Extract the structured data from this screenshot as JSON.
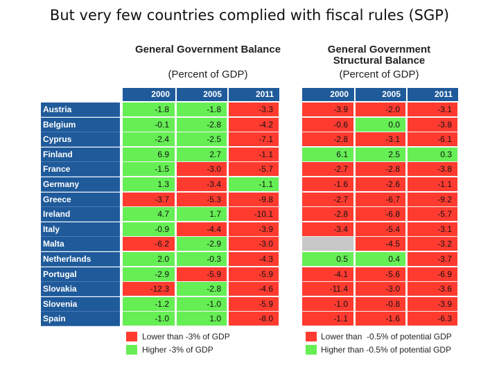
{
  "slide_title": "But very few countries complied with fiscal rules (SGP)",
  "colors": {
    "header": "#1f5a9a",
    "red": "#ff3b30",
    "green": "#66ee55",
    "gray": "#c8c8c8"
  },
  "chart_data": [
    {
      "type": "table",
      "title": "General Government Balance",
      "subtitle": "(Percent of GDP)",
      "columns": [
        "2000",
        "2005",
        "2011"
      ],
      "rows": [
        "Austria",
        "Belgium",
        "Cyprus",
        "Finland",
        "France",
        "Germany",
        "Greece",
        "Ireland",
        "Italy",
        "Malta",
        "Netherlands",
        "Portugal",
        "Slovakia",
        "Slovenia",
        "Spain"
      ],
      "values": [
        [
          -1.8,
          -1.8,
          -3.3
        ],
        [
          -0.1,
          -2.8,
          -4.2
        ],
        [
          -2.4,
          -2.5,
          -7.1
        ],
        [
          6.9,
          2.7,
          -1.1
        ],
        [
          -1.5,
          -3.0,
          -5.7
        ],
        [
          1.3,
          -3.4,
          -1.1
        ],
        [
          -3.7,
          -5.3,
          -9.8
        ],
        [
          4.7,
          1.7,
          -10.1
        ],
        [
          -0.9,
          -4.4,
          -3.9
        ],
        [
          -6.2,
          -2.9,
          -3.0
        ],
        [
          2.0,
          -0.3,
          -4.3
        ],
        [
          -2.9,
          -5.9,
          -5.9
        ],
        [
          -12.3,
          -2.8,
          -4.6
        ],
        [
          -1.2,
          -1.0,
          -5.9
        ],
        [
          -1.0,
          1.0,
          -8.0
        ]
      ],
      "cell_labels": [
        [
          "-1.8",
          "-1.8",
          "-3.3"
        ],
        [
          "-0.1",
          "-2.8",
          "-4.2"
        ],
        [
          "-2.4",
          "-2.5",
          "-7.1"
        ],
        [
          "6.9",
          "2.7",
          "-1.1"
        ],
        [
          "-1.5",
          "-3.0",
          "-5.7"
        ],
        [
          "1.3",
          "-3.4",
          "-1.1"
        ],
        [
          "-3.7",
          "-5.3",
          "-9.8"
        ],
        [
          "4.7",
          "1.7",
          "-10.1"
        ],
        [
          "-0.9",
          "-4.4",
          "-3.9"
        ],
        [
          "-6.2",
          "-2.9",
          "-3.0"
        ],
        [
          "2.0",
          "-0.3",
          "-4.3"
        ],
        [
          "-2.9",
          "-5.9",
          "-5.9"
        ],
        [
          "-12.3",
          "-2.8",
          "-4.6"
        ],
        [
          "-1.2",
          "-1.0",
          "-5.9"
        ],
        [
          "-1.0",
          "1.0",
          "-8.0"
        ]
      ],
      "status": [
        [
          "g",
          "g",
          "r"
        ],
        [
          "g",
          "g",
          "r"
        ],
        [
          "g",
          "g",
          "r"
        ],
        [
          "g",
          "g",
          "r"
        ],
        [
          "g",
          "r",
          "r"
        ],
        [
          "g",
          "r",
          "g"
        ],
        [
          "r",
          "r",
          "r"
        ],
        [
          "g",
          "g",
          "r"
        ],
        [
          "g",
          "r",
          "r"
        ],
        [
          "r",
          "g",
          "r"
        ],
        [
          "g",
          "g",
          "r"
        ],
        [
          "g",
          "r",
          "r"
        ],
        [
          "r",
          "g",
          "r"
        ],
        [
          "g",
          "g",
          "r"
        ],
        [
          "g",
          "g",
          "r"
        ]
      ],
      "legend": [
        {
          "label": "Lower than -3% of GDP",
          "color": "red"
        },
        {
          "label": "Higher -3% of GDP",
          "color": "green"
        }
      ]
    },
    {
      "type": "table",
      "title": "General Government Structural Balance",
      "subtitle": "(Percent of GDP)",
      "columns": [
        "2000",
        "2005",
        "2011"
      ],
      "rows": [
        "Austria",
        "Belgium",
        "Cyprus",
        "Finland",
        "France",
        "Germany",
        "Greece",
        "Ireland",
        "Italy",
        "Malta",
        "Netherlands",
        "Portugal",
        "Slovakia",
        "Slovenia",
        "Spain"
      ],
      "values": [
        [
          -3.9,
          -2.0,
          -3.1
        ],
        [
          -0.6,
          0.0,
          -3.8
        ],
        [
          -2.8,
          -3.1,
          -6.1
        ],
        [
          6.1,
          2.5,
          0.3
        ],
        [
          -2.7,
          -2.8,
          -3.8
        ],
        [
          -1.6,
          -2.6,
          -1.1
        ],
        [
          -2.7,
          -6.7,
          -9.2
        ],
        [
          -2.8,
          -6.8,
          -5.7
        ],
        [
          -3.4,
          -5.4,
          -3.1
        ],
        [
          null,
          -4.5,
          -3.2
        ],
        [
          0.5,
          0.4,
          -3.7
        ],
        [
          -4.1,
          -5.6,
          -6.9
        ],
        [
          -11.4,
          -3.0,
          -3.6
        ],
        [
          -1.0,
          -0.8,
          -3.9
        ],
        [
          -1.1,
          -1.6,
          -6.3
        ]
      ],
      "cell_labels": [
        [
          "-3.9",
          "-2.0",
          "-3.1"
        ],
        [
          "-0.6",
          "0.0",
          "-3.8"
        ],
        [
          "-2.8",
          "-3.1",
          "-6.1"
        ],
        [
          "6.1",
          "2.5",
          "0.3"
        ],
        [
          "-2.7",
          "-2.8",
          "-3.8"
        ],
        [
          "-1.6",
          "-2.6",
          "-1.1"
        ],
        [
          "-2.7",
          "-6.7",
          "-9.2"
        ],
        [
          "-2.8",
          "-6.8",
          "-5.7"
        ],
        [
          "-3.4",
          "-5.4",
          "-3.1"
        ],
        [
          "",
          "-4.5",
          "-3.2"
        ],
        [
          "0.5",
          "0.4",
          "-3.7"
        ],
        [
          "-4.1",
          "-5.6",
          "-6.9"
        ],
        [
          "-11.4",
          "-3.0",
          "-3.6"
        ],
        [
          "-1.0",
          "-0.8",
          "-3.9"
        ],
        [
          "-1.1",
          "-1.6",
          "-6.3"
        ]
      ],
      "status": [
        [
          "r",
          "r",
          "r"
        ],
        [
          "r",
          "g",
          "r"
        ],
        [
          "r",
          "r",
          "r"
        ],
        [
          "g",
          "g",
          "g"
        ],
        [
          "r",
          "r",
          "r"
        ],
        [
          "r",
          "r",
          "r"
        ],
        [
          "r",
          "r",
          "r"
        ],
        [
          "r",
          "r",
          "r"
        ],
        [
          "r",
          "r",
          "r"
        ],
        [
          "x",
          "r",
          "r"
        ],
        [
          "g",
          "g",
          "r"
        ],
        [
          "r",
          "r",
          "r"
        ],
        [
          "r",
          "r",
          "r"
        ],
        [
          "r",
          "r",
          "r"
        ],
        [
          "r",
          "r",
          "r"
        ]
      ],
      "legend": [
        {
          "label": "Lower than  -0.5% of potential GDP",
          "color": "red"
        },
        {
          "label": "Higher than -0.5% of potential GDP",
          "color": "green"
        }
      ]
    }
  ]
}
